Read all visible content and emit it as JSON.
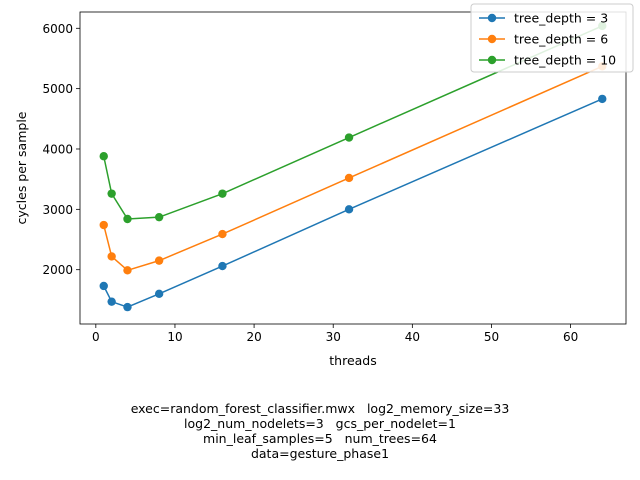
{
  "chart_data": {
    "type": "line",
    "xlabel": "threads",
    "ylabel": "cycles per sample",
    "xlim": [
      -2,
      67
    ],
    "ylim": [
      1100,
      6270
    ],
    "xticks": [
      0,
      10,
      20,
      30,
      40,
      50,
      60
    ],
    "yticks": [
      2000,
      3000,
      4000,
      5000,
      6000
    ],
    "grid": false,
    "legend_position": "top-right",
    "x": [
      1,
      2,
      4,
      8,
      16,
      32,
      64
    ],
    "series": [
      {
        "name": "tree_depth = 3",
        "color": "#1f77b4",
        "values": [
          1730,
          1470,
          1380,
          1600,
          2060,
          3000,
          4830
        ]
      },
      {
        "name": "tree_depth = 6",
        "color": "#ff7f0e",
        "values": [
          2740,
          2220,
          1990,
          2150,
          2590,
          3520,
          5370
        ]
      },
      {
        "name": "tree_depth = 10",
        "color": "#2ca02c",
        "values": [
          3880,
          3260,
          2840,
          2870,
          3260,
          4190,
          6040
        ]
      }
    ]
  },
  "caption": {
    "line1": "exec=random_forest_classifier.mwx   log2_memory_size=33",
    "line2": "log2_num_nodelets=3   gcs_per_nodelet=1",
    "line3": "min_leaf_samples=5   num_trees=64",
    "line4": "data=gesture_phase1"
  }
}
